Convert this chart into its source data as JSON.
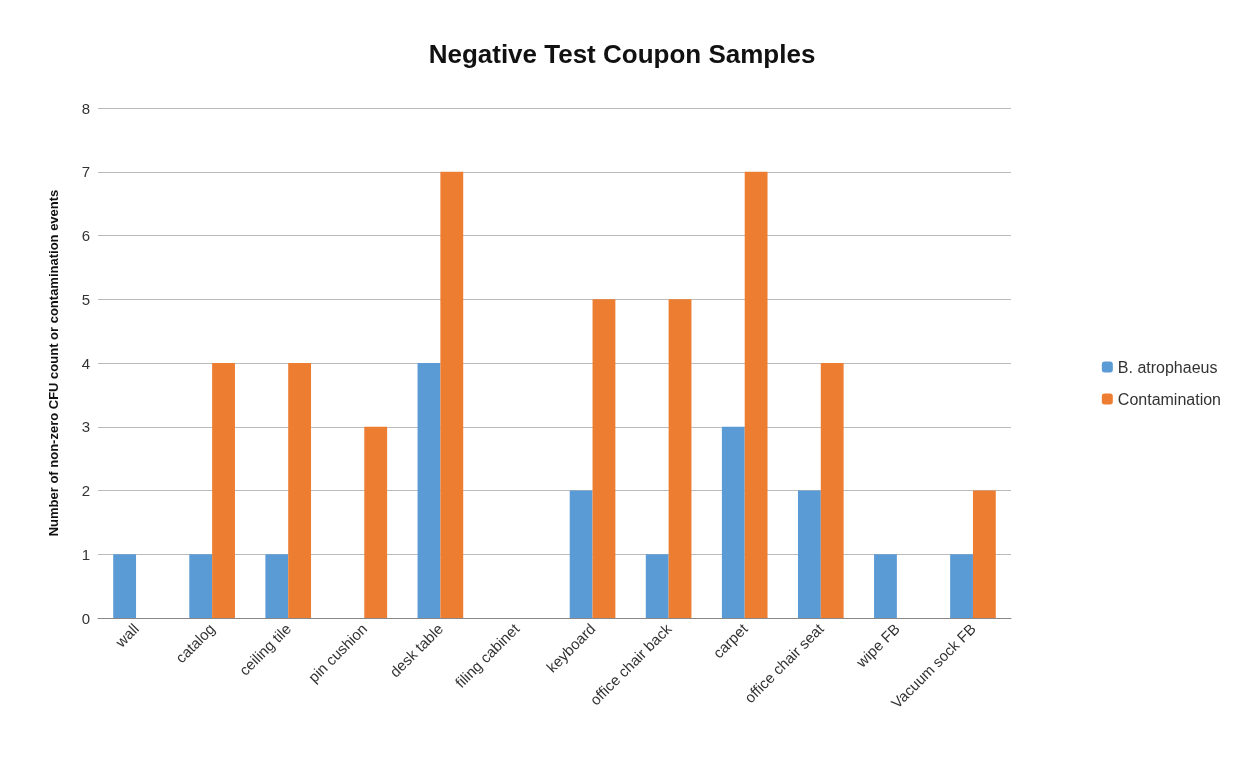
{
  "chart_data": {
    "type": "bar",
    "title": "Negative Test Coupon Samples",
    "ylabel": "Number of non-zero CFU count or contamination events",
    "categories": [
      "wall",
      "catalog",
      "ceiling tile",
      "pin cushion",
      "desk table",
      "filing cabinet",
      "keyboard",
      "office chair back",
      "carpet",
      "office chair seat",
      "wipe FB",
      "Vacuum sock FB"
    ],
    "series": [
      {
        "name": "B. atrophaeus",
        "color": "#5b9bd5",
        "values": [
          1,
          1,
          1,
          0,
          4,
          0,
          2,
          1,
          3,
          2,
          1,
          1
        ]
      },
      {
        "name": "Contamination",
        "color": "#ed7d31",
        "values": [
          0,
          4,
          4,
          3,
          7,
          0,
          5,
          5,
          7,
          4,
          0,
          2
        ]
      }
    ],
    "ylim": [
      0,
      8
    ],
    "yticks": [
      0,
      1,
      2,
      3,
      4,
      5,
      6,
      7,
      8
    ],
    "grid": "y",
    "legend": "right"
  }
}
